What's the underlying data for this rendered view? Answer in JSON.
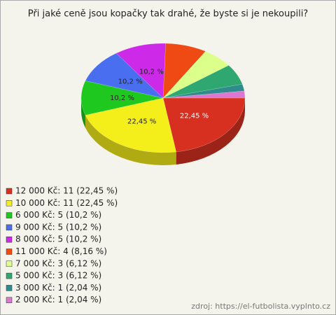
{
  "chart_data": {
    "type": "pie",
    "title": "Při jaké ceně jsou kopačky tak drahé, že byste si je nekoupili?",
    "categories": [
      "12 000 Kč: 11 (22,45 %)",
      "10 000 Kč: 11 (22,45 %)",
      "6 000 Kč: 5 (10,2 %)",
      "9 000 Kč: 5 (10,2 %)",
      "8 000 Kč: 5 (10,2 %)",
      "11 000 Kč: 4 (8,16 %)",
      "7 000 Kč: 3 (6,12 %)",
      "5 000 Kč: 3 (6,12 %)",
      "3 000 Kč: 1 (2,04 %)",
      "2 000 Kč: 1 (2,04 %)"
    ],
    "values": [
      22.45,
      22.45,
      10.2,
      10.2,
      10.2,
      8.16,
      6.12,
      6.12,
      2.04,
      2.04
    ],
    "value_labels": [
      "22,45 %",
      "22,45 %",
      "10,2 %",
      "10,2 %",
      "10,2 %",
      null,
      null,
      null,
      null,
      null
    ],
    "colors": [
      "#d83020",
      "#f4ee1a",
      "#1ec81e",
      "#4a6ef0",
      "#cc2ae8",
      "#f04a14",
      "#dcff8c",
      "#2ea870",
      "#2e8c8c",
      "#dc78d2"
    ],
    "source": "zdroj: https://el-futbolista.vyplnto.cz"
  }
}
